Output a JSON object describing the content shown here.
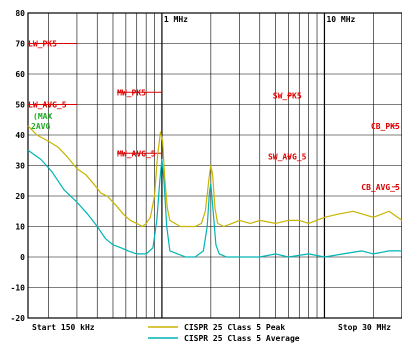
{
  "chart_data": {
    "type": "line",
    "x_scale": "log",
    "x_unit": "Hz",
    "xlim": [
      150000,
      30000000
    ],
    "ylim": [
      -20,
      80
    ],
    "y_ticks": [
      80,
      70,
      60,
      50,
      40,
      30,
      20,
      10,
      0,
      -10,
      -20
    ],
    "x_tick_labels": [
      {
        "x": 1000000,
        "label": "1 MHz"
      },
      {
        "x": 10000000,
        "label": "10 MHz"
      }
    ],
    "grid": true,
    "start_label": "Start 150 kHz",
    "stop_label": "Stop 30 MHz",
    "legend_position": "bottom-center",
    "series": [
      {
        "name": "CISPR 25 Class 5 Peak",
        "color": "#c8b400",
        "points": [
          [
            150000,
            43
          ],
          [
            170000,
            40
          ],
          [
            200000,
            38
          ],
          [
            230000,
            36
          ],
          [
            260000,
            33
          ],
          [
            300000,
            29
          ],
          [
            340000,
            27
          ],
          [
            380000,
            24
          ],
          [
            420000,
            21
          ],
          [
            460000,
            20
          ],
          [
            520000,
            17
          ],
          [
            580000,
            14
          ],
          [
            640000,
            12
          ],
          [
            700000,
            11
          ],
          [
            760000,
            10
          ],
          [
            800000,
            11
          ],
          [
            850000,
            13
          ],
          [
            900000,
            20
          ],
          [
            940000,
            33
          ],
          [
            980000,
            41
          ],
          [
            1010000,
            38
          ],
          [
            1040000,
            26
          ],
          [
            1080000,
            16
          ],
          [
            1120000,
            12
          ],
          [
            1200000,
            11
          ],
          [
            1300000,
            10
          ],
          [
            1450000,
            10
          ],
          [
            1600000,
            10
          ],
          [
            1750000,
            11
          ],
          [
            1850000,
            15
          ],
          [
            1950000,
            26
          ],
          [
            2000000,
            30
          ],
          [
            2050000,
            27
          ],
          [
            2120000,
            16
          ],
          [
            2200000,
            11
          ],
          [
            2400000,
            10
          ],
          [
            2700000,
            11
          ],
          [
            3000000,
            12
          ],
          [
            3500000,
            11
          ],
          [
            4000000,
            12
          ],
          [
            5000000,
            11
          ],
          [
            6000000,
            12
          ],
          [
            7000000,
            12
          ],
          [
            8000000,
            11
          ],
          [
            10000000,
            13
          ],
          [
            12000000,
            14
          ],
          [
            15000000,
            15
          ],
          [
            20000000,
            13
          ],
          [
            25000000,
            15
          ],
          [
            30000000,
            12
          ]
        ]
      },
      {
        "name": "CISPR 25 Class 5 Average",
        "color": "#00b4b4",
        "points": [
          [
            150000,
            35
          ],
          [
            180000,
            32
          ],
          [
            210000,
            28
          ],
          [
            250000,
            22
          ],
          [
            300000,
            18
          ],
          [
            350000,
            14
          ],
          [
            400000,
            10
          ],
          [
            450000,
            6
          ],
          [
            500000,
            4
          ],
          [
            560000,
            3
          ],
          [
            620000,
            2
          ],
          [
            700000,
            1
          ],
          [
            800000,
            1
          ],
          [
            880000,
            3
          ],
          [
            930000,
            12
          ],
          [
            970000,
            25
          ],
          [
            1000000,
            32
          ],
          [
            1030000,
            25
          ],
          [
            1070000,
            10
          ],
          [
            1120000,
            2
          ],
          [
            1250000,
            1
          ],
          [
            1400000,
            0
          ],
          [
            1600000,
            0
          ],
          [
            1800000,
            2
          ],
          [
            1900000,
            10
          ],
          [
            1960000,
            21
          ],
          [
            2000000,
            24
          ],
          [
            2060000,
            16
          ],
          [
            2150000,
            4
          ],
          [
            2250000,
            1
          ],
          [
            2500000,
            0
          ],
          [
            3000000,
            0
          ],
          [
            4000000,
            0
          ],
          [
            5000000,
            1
          ],
          [
            6000000,
            0
          ],
          [
            8000000,
            1
          ],
          [
            10000000,
            0
          ],
          [
            13000000,
            1
          ],
          [
            17000000,
            2
          ],
          [
            20000000,
            1
          ],
          [
            25000000,
            2
          ],
          [
            30000000,
            2
          ]
        ]
      }
    ],
    "limit_lines": [
      {
        "label": "LW_PK5",
        "x_start": 150000,
        "x_end": 300000,
        "y": 70
      },
      {
        "label": "LW_AVG_5",
        "x_start": 150000,
        "x_end": 300000,
        "y": 50
      },
      {
        "label": "MW_PK5",
        "x_start": 530000,
        "x_end": 1000000,
        "y": 54
      },
      {
        "label": "MW_AVG_5",
        "x_start": 530000,
        "x_end": 1000000,
        "y": 34
      },
      {
        "label": "SW_PK5",
        "x_start": 5900000,
        "x_end": 6200000,
        "y": 53
      },
      {
        "label": "SW_AVG_5",
        "x_start": 5900000,
        "x_end": 6200000,
        "y": 33
      },
      {
        "label": "CB_PK5",
        "x_start": 26000000,
        "x_end": 28000000,
        "y": 43
      },
      {
        "label": "CB_AVG_5",
        "x_start": 26000000,
        "x_end": 28000000,
        "y": 23
      }
    ],
    "marker_label": [
      "(MAX",
      "2AVG"
    ]
  }
}
